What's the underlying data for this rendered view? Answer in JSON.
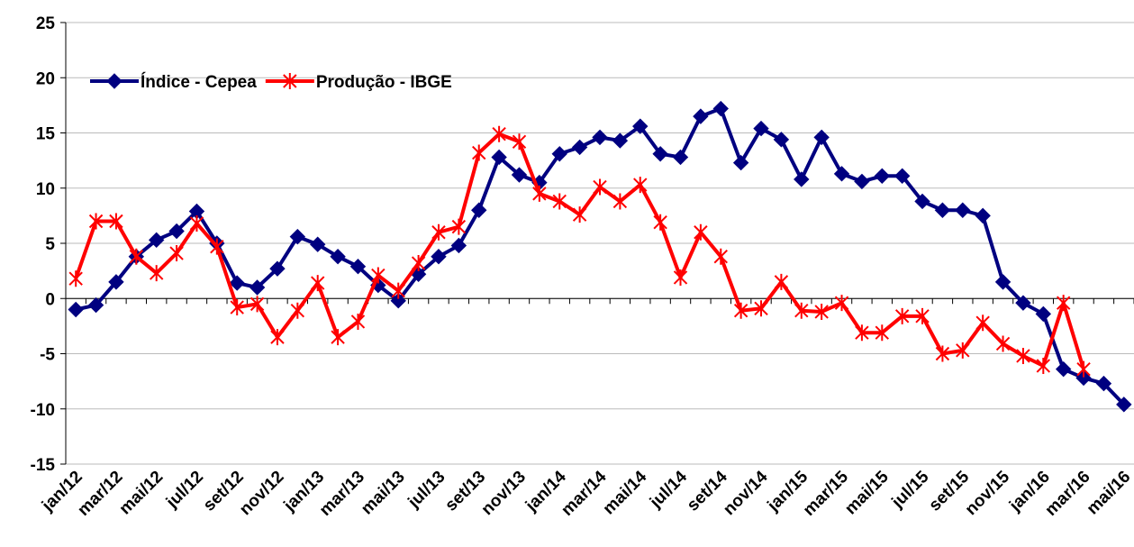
{
  "chart_data": {
    "type": "line",
    "categories": [
      "jan/12",
      null,
      "mar/12",
      null,
      "mai/12",
      null,
      "jul/12",
      null,
      "set/12",
      null,
      "nov/12",
      null,
      "jan/13",
      null,
      "mar/13",
      null,
      "mai/13",
      null,
      "jul/13",
      null,
      "set/13",
      null,
      "nov/13",
      null,
      "jan/14",
      null,
      "mar/14",
      null,
      "mai/14",
      null,
      "jul/14",
      null,
      "set/14",
      null,
      "nov/14",
      null,
      "jan/15",
      null,
      "mar/15",
      null,
      "mai/15",
      null,
      "jul/15",
      null,
      "set/15",
      null,
      "nov/15",
      null,
      "jan/16",
      null,
      "mar/16",
      null,
      "mai/16"
    ],
    "series": [
      {
        "name": "Índice - Cepea",
        "color": "#000080",
        "marker": "diamond",
        "values": [
          -1,
          -0.6,
          1.5,
          3.8,
          5.3,
          6.1,
          7.9,
          5.0,
          1.4,
          1.0,
          2.7,
          5.6,
          4.9,
          3.8,
          2.9,
          1.2,
          -0.2,
          2.2,
          3.8,
          4.8,
          8.0,
          12.8,
          11.2,
          10.5,
          13.1,
          13.7,
          14.6,
          14.3,
          15.6,
          13.1,
          12.8,
          16.5,
          17.2,
          12.3,
          15.4,
          14.4,
          10.8,
          14.6,
          11.3,
          10.6,
          11.1,
          11.1,
          8.8,
          8.0,
          8.0,
          7.5,
          1.5,
          -0.4,
          -1.4,
          -6.4,
          -7.2,
          -7.7,
          -9.6
        ]
      },
      {
        "name": "Produção - IBGE",
        "color": "#ff0000",
        "marker": "star",
        "values": [
          1.8,
          7.0,
          7.0,
          3.8,
          2.3,
          4.1,
          6.8,
          4.7,
          -0.8,
          -0.5,
          -3.5,
          -1.1,
          1.4,
          -3.5,
          -2.1,
          2.1,
          0.7,
          3.2,
          6.0,
          6.5,
          13.2,
          14.9,
          14.2,
          9.5,
          8.8,
          7.6,
          10.1,
          8.8,
          10.3,
          6.9,
          1.9,
          6.0,
          3.8,
          -1.1,
          -0.9,
          1.5,
          -1.1,
          -1.2,
          -0.4,
          -3.1,
          -3.1,
          -1.6,
          -1.6,
          -5.0,
          -4.7,
          -2.2,
          -4.1,
          -5.2,
          -6.1,
          -0.4,
          -6.4,
          null,
          null
        ]
      }
    ],
    "ylim": [
      -15,
      25
    ],
    "yticks": [
      -15,
      -10,
      -5,
      0,
      5,
      10,
      15,
      20,
      25
    ],
    "grid": true,
    "legend": "upper left"
  }
}
